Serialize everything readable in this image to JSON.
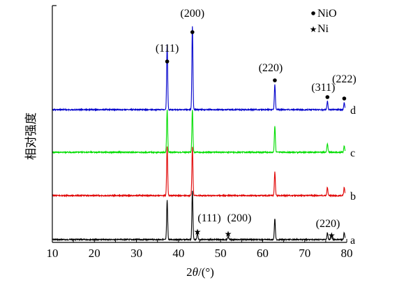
{
  "chart_data": {
    "type": "line",
    "xlabel_prefix": "2",
    "xlabel_theta": "θ",
    "xlabel_suffix": "/(°)",
    "ylabel": "相对强度",
    "xlim": [
      10,
      80
    ],
    "x_ticks": [
      10,
      20,
      30,
      40,
      50,
      60,
      70,
      80
    ],
    "legend": [
      {
        "symbol": "•",
        "label": "NiO"
      },
      {
        "symbol": "★",
        "label": "Ni"
      }
    ],
    "series": [
      {
        "name": "a",
        "color": "#000000",
        "peaks": [
          {
            "x": 37.3,
            "h": 0.95
          },
          {
            "x": 43.3,
            "h": 1.0
          },
          {
            "x": 44.5,
            "h": 0.12
          },
          {
            "x": 51.8,
            "h": 0.06
          },
          {
            "x": 62.9,
            "h": 0.45
          },
          {
            "x": 75.4,
            "h": 0.12
          },
          {
            "x": 76.4,
            "h": 0.08
          },
          {
            "x": 79.4,
            "h": 0.12
          }
        ]
      },
      {
        "name": "b",
        "color": "#e00000",
        "peaks": [
          {
            "x": 37.3,
            "h": 1.0
          },
          {
            "x": 43.3,
            "h": 1.0
          },
          {
            "x": 62.9,
            "h": 0.5
          },
          {
            "x": 75.4,
            "h": 0.2
          },
          {
            "x": 79.4,
            "h": 0.15
          }
        ]
      },
      {
        "name": "c",
        "color": "#00dd00",
        "peaks": [
          {
            "x": 37.3,
            "h": 1.0
          },
          {
            "x": 43.3,
            "h": 1.0
          },
          {
            "x": 62.9,
            "h": 0.55
          },
          {
            "x": 75.4,
            "h": 0.2
          },
          {
            "x": 79.4,
            "h": 0.12
          }
        ]
      },
      {
        "name": "d",
        "color": "#0000cc",
        "peaks": [
          {
            "x": 37.3,
            "h": 1.0
          },
          {
            "x": 43.3,
            "h": 1.0
          },
          {
            "x": 62.9,
            "h": 0.5
          },
          {
            "x": 75.4,
            "h": 0.15
          },
          {
            "x": 79.4,
            "h": 0.12
          }
        ]
      }
    ],
    "nio_annotations": [
      {
        "label": "(111)",
        "x": 37.3
      },
      {
        "label": "(200)",
        "x": 43.3
      },
      {
        "label": "(220)",
        "x": 62.9
      },
      {
        "label": "(311)",
        "x": 75.4
      },
      {
        "label": "(222)",
        "x": 79.4
      }
    ],
    "ni_annotations": [
      {
        "label": "(111)",
        "x": 44.5
      },
      {
        "label": "(200)",
        "x": 51.8
      },
      {
        "label": "(220)",
        "x": 76.4
      }
    ]
  }
}
